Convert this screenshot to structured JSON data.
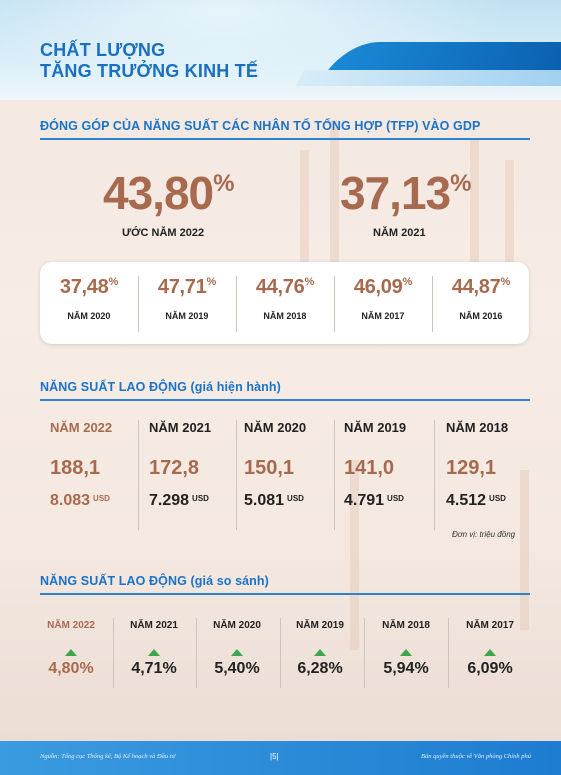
{
  "header": {
    "title_line1": "CHẤT LƯỢNG",
    "title_line2": "TĂNG TRƯỞNG KINH TẾ"
  },
  "tfp": {
    "section_title": "ĐÓNG GÓP CỦA NĂNG SUẤT CÁC NHÂN TỐ TỔNG HỢP (TFP) VÀO GDP",
    "highlight": [
      {
        "value": "43,80",
        "unit": "%",
        "caption": "ƯỚC NĂM 2022"
      },
      {
        "value": "37,13",
        "unit": "%",
        "caption": "NĂM 2021"
      }
    ],
    "years": [
      {
        "value": "37,48",
        "unit": "%",
        "year": "NĂM 2020"
      },
      {
        "value": "47,71",
        "unit": "%",
        "year": "NĂM 2019"
      },
      {
        "value": "44,76",
        "unit": "%",
        "year": "NĂM 2018"
      },
      {
        "value": "46,09",
        "unit": "%",
        "year": "NĂM 2017"
      },
      {
        "value": "44,87",
        "unit": "%",
        "year": "NĂM 2016"
      }
    ]
  },
  "labor_current": {
    "section_title": "NĂNG SUẤT LAO ĐỘNG (giá hiện hành)",
    "columns": [
      {
        "year": "NĂM 2022",
        "value": "188,1",
        "usd": "8.083",
        "usd_unit": "USD"
      },
      {
        "year": "NĂM 2021",
        "value": "172,8",
        "usd": "7.298",
        "usd_unit": "USD"
      },
      {
        "year": "NĂM 2020",
        "value": "150,1",
        "usd": "5.081",
        "usd_unit": "USD"
      },
      {
        "year": "NĂM 2019",
        "value": "141,0",
        "usd": "4.791",
        "usd_unit": "USD"
      },
      {
        "year": "NĂM 2018",
        "value": "129,1",
        "usd": "4.512",
        "usd_unit": "USD"
      }
    ],
    "unit_note": "Đơn vị: triệu đồng"
  },
  "labor_constant": {
    "section_title": "NĂNG SUẤT LAO ĐỘNG (giá so sánh)",
    "columns": [
      {
        "year": "NĂM 2022",
        "value": "4,80%"
      },
      {
        "year": "NĂM 2021",
        "value": "4,71%"
      },
      {
        "year": "NĂM 2020",
        "value": "5,40%"
      },
      {
        "year": "NĂM 2019",
        "value": "6,28%"
      },
      {
        "year": "NĂM 2018",
        "value": "5,94%"
      },
      {
        "year": "NĂM 2017",
        "value": "6,09%"
      }
    ]
  },
  "footer": {
    "source": "Nguồn: Tổng cục Thống kê, Bộ Kế hoạch và Đầu tư",
    "page": "|5|",
    "copyright": "Bản quyền thuộc về Văn phòng Chính phủ"
  },
  "colors": {
    "accent": "#1a73c8",
    "value": "#a86a4e",
    "up_arrow": "#3fa650"
  }
}
